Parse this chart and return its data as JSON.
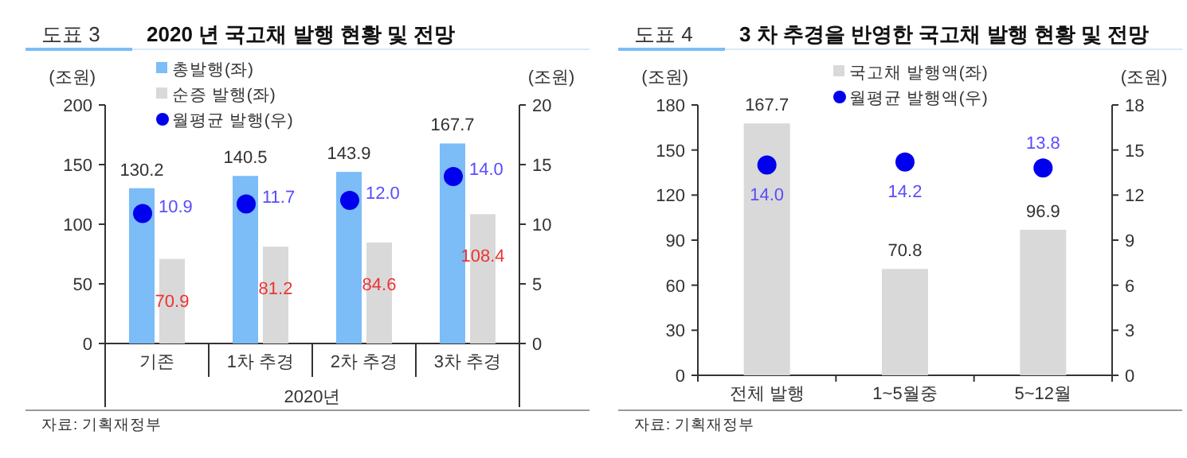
{
  "chart_data": [
    {
      "type": "bar",
      "title": "2020 년 국고채 발행 현황 및 전망",
      "categories": [
        "기존",
        "1차 추경",
        "2차 추경",
        "3차 추경"
      ],
      "xlabel": "2020년",
      "ylabel": "(조원)",
      "y2label": "(조원)",
      "ylim": [
        0,
        200
      ],
      "yticks": [
        0,
        50,
        100,
        150,
        200
      ],
      "y2lim": [
        0,
        20
      ],
      "y2ticks": [
        0,
        5,
        10,
        15,
        20
      ],
      "data_labels": true,
      "legend": "top left",
      "annotations": [
        "도표 3",
        "자료: 기획재정부"
      ],
      "series": [
        {
          "name": "총발행(좌)",
          "color": "#7cbcf7",
          "values": [
            130.2,
            140.5,
            143.9,
            167.7
          ]
        },
        {
          "name": "순증 발행(좌)",
          "color": "#d9d9d9",
          "values": [
            70.9,
            81.2,
            84.6,
            108.4
          ]
        },
        {
          "name": "월평균 발행(우)",
          "type": "scatter",
          "axis": "y2",
          "color": "#0000ee",
          "values": [
            10.9,
            11.7,
            12.0,
            14.0
          ],
          "value_labels": [
            "10.9",
            "11.7",
            "12.0",
            "14.0"
          ]
        }
      ]
    },
    {
      "type": "bar",
      "title": "3 차 추경을 반영한 국고채 발행 현황 및 전망",
      "categories": [
        "전체 발행",
        "1~5월중",
        "5~12월"
      ],
      "ylabel": "(조원)",
      "y2label": "(조원)",
      "ylim": [
        0,
        180
      ],
      "yticks": [
        0,
        30,
        60,
        90,
        120,
        150,
        180
      ],
      "y2lim": [
        0,
        18
      ],
      "y2ticks": [
        0,
        3,
        6,
        9,
        12,
        15,
        18
      ],
      "data_labels": true,
      "legend": "top",
      "annotations": [
        "도표 4",
        "자료: 기획재정부"
      ],
      "series": [
        {
          "name": "국고채 발행액(좌)",
          "color": "#d9d9d9",
          "values": [
            167.7,
            70.8,
            96.9
          ]
        },
        {
          "name": "월평균 발행액(우)",
          "type": "scatter",
          "axis": "y2",
          "color": "#0000ee",
          "values": [
            14.0,
            14.2,
            13.8
          ],
          "value_labels": [
            "14.0",
            "14.2",
            "13.8"
          ]
        }
      ]
    }
  ]
}
